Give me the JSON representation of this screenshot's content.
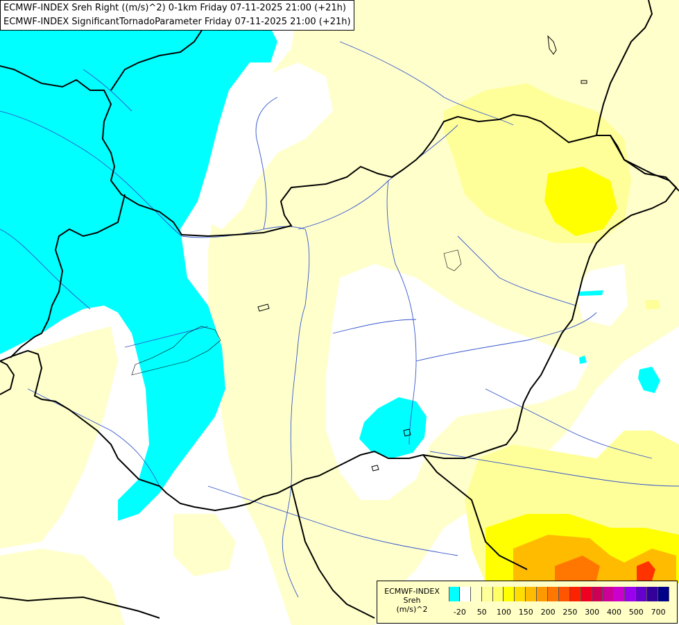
{
  "header": {
    "line1": "ECMWF-INDEX Sreh Right ((m/s)^2) 0-1km Friday 07-11-2025 21:00 (+21h)",
    "line2": "ECMWF-INDEX SignificantTornadoParameter Friday 07-11-2025 21:00 (+21h)"
  },
  "legend": {
    "line1": "ECMWF-INDEX",
    "line2": "Sreh",
    "line3": "(m/s)^2",
    "ticks": [
      "-20",
      "50",
      "100",
      "150",
      "200",
      "250",
      "300",
      "400",
      "500",
      "700"
    ],
    "colors": [
      "#00ffff",
      "#ffffff",
      "#ffffcc",
      "#ffff99",
      "#ffff66",
      "#ffff00",
      "#ffdd00",
      "#ffbb00",
      "#ff9900",
      "#ff7700",
      "#ff5500",
      "#ff2200",
      "#ee0022",
      "#cc0055",
      "#cc0099",
      "#cc00cc",
      "#9900ee",
      "#6600cc",
      "#330099",
      "#000088"
    ]
  },
  "map_colors": {
    "cyan": "#00ffff",
    "pale": "#ffffcc",
    "light_yellow": "#ffff99",
    "yellow": "#ffff00",
    "orange": "#ffbb00",
    "dark_orange": "#ff7700",
    "red": "#ff3300",
    "borders": "#000000",
    "rivers": "#3355cc"
  }
}
